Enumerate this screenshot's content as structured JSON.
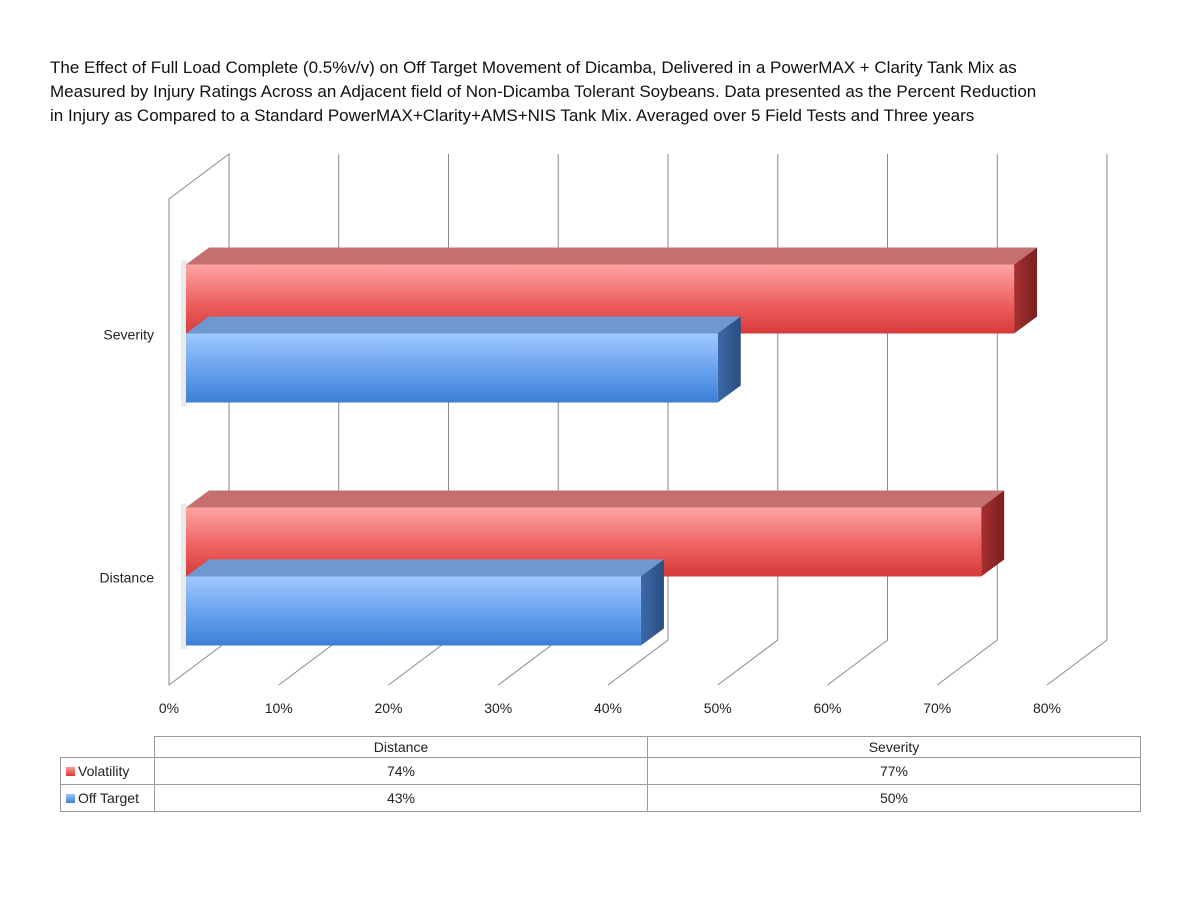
{
  "title_lines": [
    "The Effect of Full Load Complete (0.5%v/v) on Off Target Movement of Dicamba, Delivered in a PowerMAX + Clarity Tank Mix as",
    "Measured by Injury Ratings Across an Adjacent field of Non-Dicamba Tolerant Soybeans. Data presented as the Percent Reduction",
    "in Injury as Compared to a Standard PowerMAX+Clarity+AMS+NIS Tank Mix.  Averaged over 5 Field Tests and Three years"
  ],
  "chart_data": {
    "type": "bar",
    "orientation": "horizontal",
    "style": "3d",
    "categories": [
      "Distance",
      "Severity"
    ],
    "series": [
      {
        "name": "Volatility",
        "values": [
          74,
          77
        ],
        "labels": [
          "74%",
          "77%"
        ],
        "color": "#e04848"
      },
      {
        "name": "Off Target",
        "values": [
          43,
          50
        ],
        "labels": [
          "43%",
          "50%"
        ],
        "color": "#4a8ae0"
      }
    ],
    "xlim": [
      0,
      80
    ],
    "x_ticks": [
      0,
      10,
      20,
      30,
      40,
      50,
      60,
      70,
      80
    ],
    "x_tick_labels": [
      "0%",
      "10%",
      "20%",
      "30%",
      "40%",
      "50%",
      "60%",
      "70%",
      "80%"
    ],
    "grid": true,
    "legend": "data-table-below"
  }
}
